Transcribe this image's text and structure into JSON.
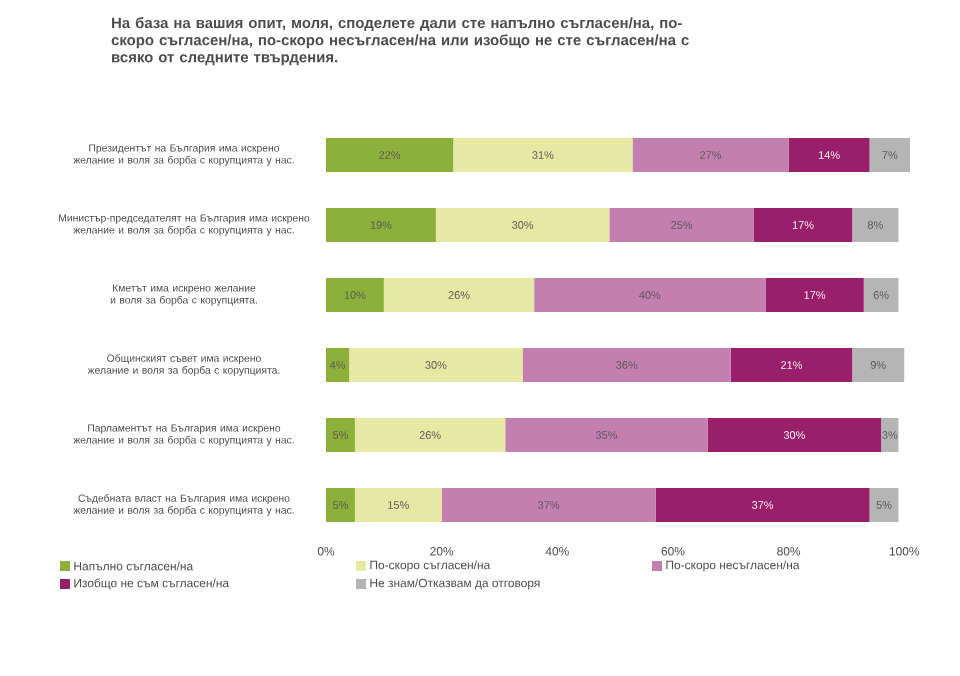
{
  "chart_data": {
    "type": "bar",
    "orientation": "horizontal",
    "stacked": true,
    "title": "На база на вашия опит, моля, споделете дали сте напълно съгласен/на, по-скоро съгласен/на, по-скоро несъгласен/на или изобщо не сте съгласен/на с всяко от следните твърдения.",
    "categories": [
      "Президентът на България има искрено желание и воля за борба с корупцията у нас.",
      "Министър-председателят на България има искрено желание и воля за борба с корупцията у нас.",
      "Кметът има искрено желание и воля за борба с корупцията.",
      "Общинският съвет има искрено желание и воля за борба с корупцията.",
      "Парламентът на България има искрено желание и воля за борба с корупцията у нас.",
      "Съдебната власт на България има искрено желание и воля за борба с корупцията у нас."
    ],
    "series": [
      {
        "name": "Напълно съгласен/на",
        "color": "#8db03a",
        "values": [
          22,
          19,
          10,
          4,
          5,
          5
        ],
        "value_labels": [
          "22%",
          "19%",
          "10%",
          "4%",
          "5%",
          "5%"
        ]
      },
      {
        "name": "По-скоро съгласен/на",
        "color": "#e6e9a4",
        "values": [
          31,
          30,
          26,
          30,
          26,
          15
        ],
        "value_labels": [
          "31%",
          "30%",
          "26%",
          "30%",
          "26%",
          "15%"
        ]
      },
      {
        "name": "По-скоро несъгласен/на",
        "color": "#c27fb0",
        "values": [
          27,
          25,
          40,
          36,
          35,
          37
        ],
        "value_labels": [
          "27%",
          "25%",
          "40%",
          "36%",
          "35%",
          "37%"
        ]
      },
      {
        "name": "Изобщо не съм съгласен/на",
        "color": "#9a1f6b",
        "values": [
          14,
          17,
          17,
          21,
          30,
          37
        ],
        "value_labels": [
          "14%",
          "17%",
          "17%",
          "21%",
          "30%",
          "37%"
        ]
      },
      {
        "name": "Не знам/Отказвам да отговоря",
        "color": "#b5b5b5",
        "values": [
          7,
          8,
          6,
          9,
          3,
          5
        ],
        "value_labels": [
          "7%",
          "8%",
          "6%",
          "9%",
          "3%",
          "5%"
        ]
      }
    ],
    "xlim": [
      0,
      101
    ],
    "xticks": [
      {
        "value": 0,
        "label": "0%"
      },
      {
        "value": 20,
        "label": "20%"
      },
      {
        "value": 40,
        "label": "40%"
      },
      {
        "value": 60,
        "label": "60%"
      },
      {
        "value": 80,
        "label": "80%"
      },
      {
        "value": 100,
        "label": "100%"
      }
    ],
    "legend": "bottom"
  }
}
